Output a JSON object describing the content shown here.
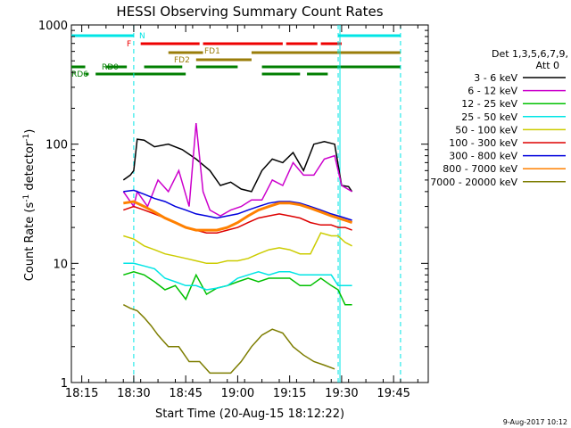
{
  "chart_data": {
    "type": "line",
    "title": "HESSI Observing Summary Count Rates",
    "xlabel": "Start Time (20-Aug-15 18:12:22)",
    "ylabel_main": "Count Rate (s",
    "ylabel_sup1": "-1",
    "ylabel_mid": " detector",
    "ylabel_sup2": "-1",
    "ylabel_end": ")",
    "y_scale": "log",
    "xlim": [
      "18:12",
      "19:55"
    ],
    "ylim": [
      1,
      1000
    ],
    "x_ticks": [
      "18:15",
      "18:30",
      "18:45",
      "19:00",
      "19:15",
      "19:30",
      "19:45"
    ],
    "y_ticks": [
      "1",
      "10",
      "100",
      "1000"
    ],
    "legend_header": [
      "Det 1,3,5,6,7,9,",
      "Att 0"
    ],
    "legend_placement": "right",
    "footer_date": "9-Aug-2017 10:12",
    "flags": [
      {
        "label": "N",
        "color": "#00e5e5",
        "segments": [
          [
            "18:12",
            "18:30"
          ],
          [
            "19:29",
            "19:47"
          ]
        ]
      },
      {
        "label": "F",
        "color": "#ee0000",
        "segments": [
          [
            "18:32",
            "18:49"
          ],
          [
            "18:50",
            "19:13"
          ],
          [
            "19:14",
            "19:23"
          ],
          [
            "19:24",
            "19:30"
          ]
        ]
      },
      {
        "label": "FD1",
        "color": "#9a7d0a",
        "segments": [
          [
            "18:40",
            "18:50"
          ],
          [
            "19:04",
            "19:47"
          ]
        ]
      },
      {
        "label": "FD2",
        "color": "#9a7d0a",
        "segments": [
          [
            "18:48",
            "19:04"
          ]
        ]
      },
      {
        "label": "RD0",
        "color": "#007f00",
        "segments": [
          [
            "18:12",
            "18:16"
          ],
          [
            "18:22",
            "18:28"
          ],
          [
            "18:33",
            "18:44"
          ],
          [
            "18:48",
            "19:00"
          ],
          [
            "19:07",
            "19:29"
          ],
          [
            "19:29",
            "19:47"
          ]
        ]
      },
      {
        "label": "RD6",
        "color": "#007f00",
        "segments": [
          [
            "18:16",
            "18:17"
          ],
          [
            "18:19",
            "18:45"
          ],
          [
            "19:07",
            "19:18"
          ],
          [
            "19:20",
            "19:26"
          ]
        ]
      }
    ],
    "dashed_vlines": [
      "18:30",
      "19:29",
      "19:47"
    ],
    "solid_vlines": [
      "19:29"
    ],
    "series": [
      {
        "name": "3 - 6 keV",
        "color": "#000000",
        "x": [
          "18:27",
          "18:29",
          "18:30",
          "18:31",
          "18:33",
          "18:36",
          "18:40",
          "18:44",
          "18:48",
          "18:52",
          "18:55",
          "18:58",
          "19:01",
          "19:04",
          "19:07",
          "19:10",
          "19:13",
          "19:16",
          "19:19",
          "19:22",
          "19:25",
          "19:28",
          "19:30",
          "19:32",
          "19:33"
        ],
        "values": [
          50,
          55,
          60,
          110,
          108,
          95,
          100,
          90,
          75,
          60,
          45,
          48,
          42,
          40,
          60,
          75,
          70,
          85,
          60,
          100,
          105,
          100,
          45,
          44,
          40
        ]
      },
      {
        "name": "6 - 12 keV",
        "color": "#cc00cc",
        "x": [
          "18:27",
          "18:30",
          "18:31",
          "18:34",
          "18:37",
          "18:40",
          "18:43",
          "18:46",
          "18:48",
          "18:50",
          "18:52",
          "18:55",
          "18:58",
          "19:01",
          "19:04",
          "19:07",
          "19:10",
          "19:13",
          "19:16",
          "19:19",
          "19:22",
          "19:25",
          "19:28",
          "19:30",
          "19:33"
        ],
        "values": [
          40,
          30,
          40,
          30,
          50,
          40,
          60,
          30,
          150,
          40,
          28,
          25,
          28,
          30,
          34,
          34,
          50,
          45,
          70,
          55,
          55,
          75,
          80,
          45,
          40
        ]
      },
      {
        "name": "12 - 25 keV",
        "color": "#00c000",
        "x": [
          "18:27",
          "18:30",
          "18:33",
          "18:36",
          "18:39",
          "18:42",
          "18:45",
          "18:48",
          "18:51",
          "18:54",
          "18:57",
          "19:00",
          "19:03",
          "19:06",
          "19:09",
          "19:12",
          "19:15",
          "19:18",
          "19:21",
          "19:24",
          "19:27",
          "19:29",
          "19:31",
          "19:33"
        ],
        "values": [
          8,
          8.5,
          8,
          7,
          6,
          6.5,
          5,
          8,
          5.5,
          6.2,
          6.5,
          7,
          7.5,
          7,
          7.5,
          7.5,
          7.5,
          6.5,
          6.5,
          7.5,
          6.5,
          6,
          4.5,
          4.5
        ]
      },
      {
        "name": "25 - 50 keV",
        "color": "#00e5e5",
        "x": [
          "18:27",
          "18:30",
          "18:33",
          "18:36",
          "18:39",
          "18:42",
          "18:45",
          "18:48",
          "18:51",
          "18:54",
          "18:57",
          "19:00",
          "19:03",
          "19:06",
          "19:09",
          "19:12",
          "19:15",
          "19:18",
          "19:21",
          "19:24",
          "19:27",
          "19:29",
          "19:31",
          "19:33"
        ],
        "values": [
          10,
          10,
          9.5,
          9,
          7.5,
          7,
          6.5,
          6.5,
          6,
          6.2,
          6.5,
          7.5,
          8,
          8.5,
          8,
          8.5,
          8.5,
          8,
          8,
          8,
          8,
          6.5,
          6.5,
          6.5
        ]
      },
      {
        "name": "50 - 100 keV",
        "color": "#cccc00",
        "x": [
          "18:27",
          "18:30",
          "18:33",
          "18:36",
          "18:39",
          "18:42",
          "18:45",
          "18:48",
          "18:51",
          "18:54",
          "18:57",
          "19:00",
          "19:03",
          "19:06",
          "19:09",
          "19:12",
          "19:15",
          "19:18",
          "19:21",
          "19:24",
          "19:27",
          "19:29",
          "19:31",
          "19:33"
        ],
        "values": [
          17,
          16,
          14,
          13,
          12,
          11.5,
          11,
          10.5,
          10,
          10,
          10.5,
          10.5,
          11,
          12,
          13,
          13.5,
          13,
          12,
          12,
          18,
          17,
          17,
          15,
          14
        ]
      },
      {
        "name": "100 - 300 keV",
        "color": "#dd0000",
        "x": [
          "18:27",
          "18:30",
          "18:33",
          "18:36",
          "18:39",
          "18:42",
          "18:45",
          "18:48",
          "18:51",
          "18:54",
          "18:57",
          "19:00",
          "19:03",
          "19:06",
          "19:09",
          "19:12",
          "19:15",
          "19:18",
          "19:21",
          "19:24",
          "19:27",
          "19:29",
          "19:31",
          "19:33"
        ],
        "values": [
          28,
          30,
          28,
          26,
          24,
          22,
          20,
          19,
          18,
          18,
          19,
          20,
          22,
          24,
          25,
          26,
          25,
          24,
          22,
          21,
          21,
          20,
          20,
          19
        ]
      },
      {
        "name": "300 - 800 keV",
        "color": "#0000dd",
        "x": [
          "18:27",
          "18:30",
          "18:33",
          "18:36",
          "18:39",
          "18:42",
          "18:45",
          "18:48",
          "18:51",
          "18:54",
          "18:57",
          "19:00",
          "19:03",
          "19:06",
          "19:09",
          "19:12",
          "19:15",
          "19:18",
          "19:21",
          "19:24",
          "19:27",
          "19:29",
          "19:31",
          "19:33"
        ],
        "values": [
          40,
          41,
          38,
          35,
          33,
          30,
          28,
          26,
          25,
          24,
          25,
          26,
          28,
          30,
          32,
          33,
          33,
          32,
          30,
          28,
          26,
          25,
          24,
          23
        ]
      },
      {
        "name": "800 - 7000 keV",
        "color": "#ff8000",
        "x": [
          "18:27",
          "18:30",
          "18:33",
          "18:36",
          "18:39",
          "18:42",
          "18:45",
          "18:48",
          "18:51",
          "18:54",
          "18:57",
          "19:00",
          "19:03",
          "19:06",
          "19:09",
          "19:12",
          "19:15",
          "19:18",
          "19:21",
          "19:24",
          "19:27",
          "19:29",
          "19:31",
          "19:33"
        ],
        "values": [
          32,
          33,
          30,
          27,
          24,
          22,
          20,
          19,
          19,
          19,
          20,
          22,
          25,
          28,
          30,
          32,
          32,
          31,
          29,
          27,
          25,
          24,
          23,
          22
        ]
      },
      {
        "name": "7000 - 20000 keV",
        "color": "#7d7d00",
        "x": [
          "18:27",
          "18:29",
          "18:31",
          "18:33",
          "18:35",
          "18:37",
          "18:40",
          "18:43",
          "18:46",
          "18:49",
          "18:52",
          "18:55",
          "18:58",
          "19:01",
          "19:04",
          "19:07",
          "19:10",
          "19:13",
          "19:16",
          "19:19",
          "19:22",
          "19:25",
          "19:28"
        ],
        "values": [
          4.5,
          4.2,
          4,
          3.5,
          3,
          2.5,
          2,
          2,
          1.5,
          1.5,
          1.2,
          1.2,
          1.2,
          1.5,
          2,
          2.5,
          2.8,
          2.6,
          2,
          1.7,
          1.5,
          1.4,
          1.3
        ]
      }
    ]
  }
}
